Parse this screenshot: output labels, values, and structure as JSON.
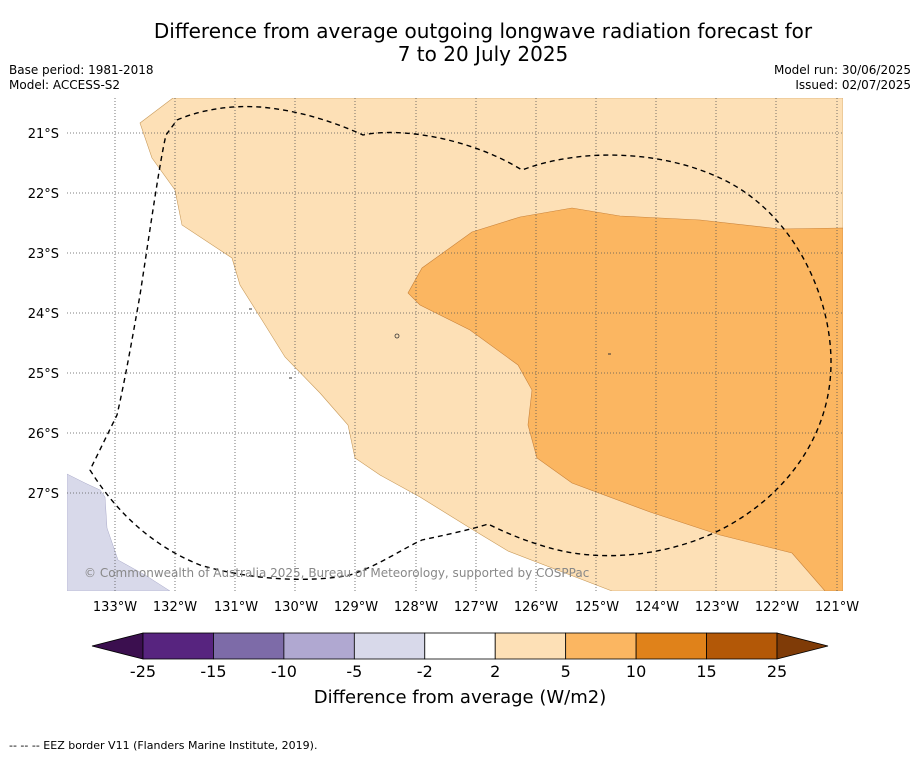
{
  "title": {
    "line1": "Difference from average outgoing longwave radiation forecast for",
    "line2": "7 to 20 July 2025"
  },
  "meta_left": {
    "base_period": "Base period: 1981-2018",
    "model": "Model: ACCESS-S2"
  },
  "meta_right": {
    "model_run": "Model run: 30/06/2025",
    "issued": "Issued: 02/07/2025"
  },
  "map": {
    "latitudes": [
      "21°S",
      "22°S",
      "23°S",
      "24°S",
      "25°S",
      "26°S",
      "27°S"
    ],
    "longitudes": [
      "133°W",
      "132°W",
      "131°W",
      "130°W",
      "129°W",
      "128°W",
      "127°W",
      "126°W",
      "125°W",
      "124°W",
      "123°W",
      "122°W",
      "121°W"
    ],
    "copyright": "© Commonwealth of Australia 2025, Bureau of Meteorology, supported by COSPPac",
    "colors": {
      "band_2_5": "#fde0b6",
      "band_5_10": "#fbb661",
      "band_neg5_neg2": "#d8d9ea",
      "grid": "#555555"
    }
  },
  "colorbar": {
    "ticks": [
      "-25",
      "-15",
      "-10",
      "-5",
      "-2",
      "2",
      "5",
      "10",
      "15",
      "25"
    ],
    "colors": [
      "#3b0f4f",
      "#57247f",
      "#7d6ba8",
      "#b0a8d1",
      "#d8d9ea",
      "#ffffff",
      "#fde0b6",
      "#fbb661",
      "#e0821a",
      "#b35807",
      "#7f3b07"
    ],
    "title": "Difference from average (W/m2)"
  },
  "footnote": "--  --  -- EEZ border V11 (Flanders Marine Institute, 2019)."
}
